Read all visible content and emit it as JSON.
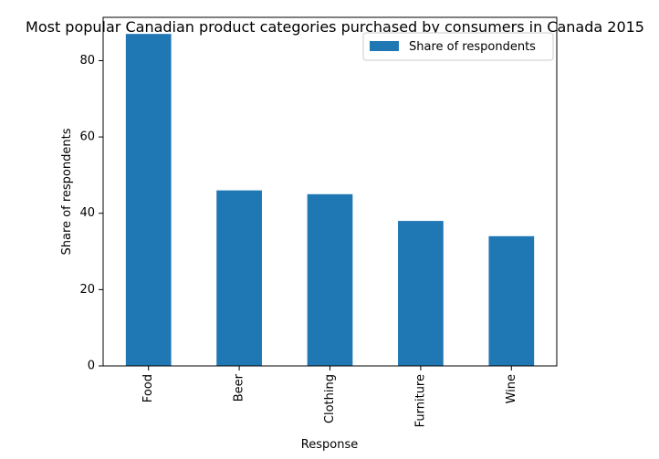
{
  "chart_data": {
    "type": "bar",
    "title": "Most popular Canadian product categories purchased by consumers in Canada 2015",
    "xlabel": "Response",
    "ylabel": "Share of respondents",
    "categories": [
      "Food",
      "Beer",
      "Clothing",
      "Furniture",
      "Wine"
    ],
    "series": [
      {
        "name": "Share of respondents",
        "values": [
          87,
          46,
          45,
          38,
          34
        ]
      }
    ],
    "ylim": [
      0,
      91.35
    ],
    "yticks": [
      0,
      20,
      40,
      60,
      80
    ],
    "legend_position": "top-right",
    "grid": false,
    "colors": {
      "bar": "#1f77b4"
    }
  }
}
